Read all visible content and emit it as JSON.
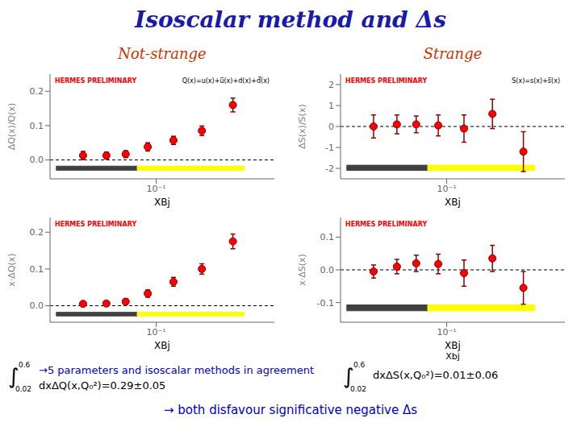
{
  "title": "Isoscalar method and Δs",
  "title_color": "#1a1aaa",
  "column_labels": {
    "texts": [
      "Not-strange",
      "Strange"
    ],
    "color": "#cc3300"
  },
  "integrals": [
    {
      "symbol": "∫",
      "lower": "0.02",
      "upper": "0.6",
      "color": "black"
    },
    {
      "symbol": "∫",
      "lower": "0.02",
      "upper": "0.6",
      "color": "black"
    }
  ],
  "notes": [
    {
      "text": "→5 parameters and isoscalar methods in agreement",
      "color": "#0000cc"
    },
    {
      "text": "dxΔS(x,Q₀²)=0.01±0.06",
      "color": "black"
    },
    {
      "text": "dxΔQ(x,Q₀²)=0.29±0.05",
      "color": "black"
    },
    {
      "text": "→ both disfavour significative negative Δs",
      "color": "#0000cc"
    }
  ],
  "chart_data": [
    {
      "type": "scatter",
      "ylabel": "ΔQ(x)/Q(x)",
      "xlabels": [
        "XBj"
      ],
      "log": "x",
      "xlim": [
        0.02,
        0.6
      ],
      "xticks": [
        {
          "value": 0.1,
          "label": "10⁻¹"
        }
      ],
      "ylim": [
        -0.055,
        0.25
      ],
      "yticks": [
        {
          "value": 0,
          "label": "0.0"
        },
        0.1,
        0.2
      ],
      "x": [
        0.033,
        0.047,
        0.063,
        0.088,
        0.13,
        0.2,
        0.32
      ],
      "values": [
        0.013,
        0.013,
        0.017,
        0.038,
        0.057,
        0.085,
        0.16
      ],
      "yerr": [
        0.012,
        0.01,
        0.01,
        0.012,
        0.012,
        0.014,
        0.02
      ],
      "color": "red",
      "error_color": "darkred",
      "marker": "circle",
      "y_reference": 0,
      "annotations": [
        {
          "text": "HERMES PRELIMINARY",
          "color": "red"
        },
        {
          "text": "Q(x)=u(x)+u̅(x)+d(x)+d̅(x)",
          "color": "black"
        }
      ],
      "bands": [
        {
          "x": [
            0.022,
            0.075
          ],
          "y": [
            -0.03,
            -0.018
          ],
          "color": "#404040"
        },
        {
          "x": [
            0.075,
            0.38
          ],
          "y": [
            -0.03,
            -0.018
          ],
          "color": "yellow"
        }
      ]
    },
    {
      "type": "scatter",
      "ylabel": "ΔS(x)/S(x)",
      "xlabels": [
        "XBj"
      ],
      "log": "x",
      "xlim": [
        0.02,
        0.6
      ],
      "xticks": [
        {
          "value": 0.1,
          "label": "10⁻¹"
        }
      ],
      "ylim": [
        -2.5,
        2.5
      ],
      "yticks": [
        -2,
        -1,
        0,
        1,
        2
      ],
      "x": [
        0.033,
        0.047,
        0.063,
        0.088,
        0.13,
        0.2,
        0.32
      ],
      "values": [
        0.0,
        0.1,
        0.1,
        0.05,
        -0.1,
        0.6,
        -1.2
      ],
      "yerr": [
        0.55,
        0.45,
        0.4,
        0.5,
        0.65,
        0.7,
        0.95
      ],
      "color": "red",
      "error_color": "darkred",
      "marker": "circle",
      "y_reference": 0,
      "annotations": [
        {
          "text": "HERMES PRELIMINARY",
          "color": "red"
        },
        {
          "text": "S(x)=s(x)+s̅(x)",
          "color": "black"
        }
      ],
      "bands": [
        {
          "x": [
            0.022,
            0.075
          ],
          "y": [
            -2.1,
            -1.85
          ],
          "color": "#404040"
        },
        {
          "x": [
            0.075,
            0.38
          ],
          "y": [
            -2.1,
            -1.85
          ],
          "color": "yellow"
        }
      ]
    },
    {
      "type": "scatter",
      "ylabel": "x·ΔQ(x)",
      "xlabels": [
        "XBj"
      ],
      "log": "x",
      "xlim": [
        0.02,
        0.6
      ],
      "xticks": [
        {
          "value": 0.1,
          "label": "10⁻¹"
        }
      ],
      "ylim": [
        -0.045,
        0.24
      ],
      "yticks": [
        {
          "value": 0,
          "label": "0.0"
        },
        0.1,
        0.2
      ],
      "x": [
        0.033,
        0.047,
        0.063,
        0.088,
        0.13,
        0.2,
        0.32
      ],
      "values": [
        0.005,
        0.006,
        0.011,
        0.033,
        0.065,
        0.1,
        0.175
      ],
      "yerr": [
        0.005,
        0.006,
        0.007,
        0.01,
        0.012,
        0.014,
        0.02
      ],
      "color": "red",
      "error_color": "darkred",
      "marker": "circle",
      "y_reference": 0,
      "annotations": [
        {
          "text": "HERMES PRELIMINARY",
          "color": "red"
        }
      ],
      "bands": [
        {
          "x": [
            0.022,
            0.075
          ],
          "y": [
            -0.028,
            -0.018
          ],
          "color": "#404040"
        },
        {
          "x": [
            0.075,
            0.38
          ],
          "y": [
            -0.028,
            -0.018
          ],
          "color": "yellow"
        }
      ]
    },
    {
      "type": "scatter",
      "ylabel": "x·ΔS(x)",
      "xlabels": [
        "XBj",
        "Xbj"
      ],
      "log": "x",
      "xlim": [
        0.02,
        0.6
      ],
      "xticks": [
        {
          "value": 0.1,
          "label": "10⁻¹"
        }
      ],
      "ylim": [
        -0.16,
        0.16
      ],
      "yticks": [
        -0.1,
        {
          "value": 0,
          "label": "0.0"
        },
        0.1
      ],
      "x": [
        0.033,
        0.047,
        0.063,
        0.088,
        0.13,
        0.2,
        0.32
      ],
      "values": [
        -0.005,
        0.01,
        0.02,
        0.018,
        -0.01,
        0.035,
        -0.055
      ],
      "yerr": [
        0.02,
        0.022,
        0.025,
        0.03,
        0.04,
        0.04,
        0.05
      ],
      "color": "red",
      "error_color": "darkred",
      "marker": "circle",
      "y_reference": 0,
      "annotations": [
        {
          "text": "HERMES PRELIMINARY",
          "color": "red"
        }
      ],
      "bands": [
        {
          "x": [
            0.022,
            0.075
          ],
          "y": [
            -0.125,
            -0.107
          ],
          "color": "#404040"
        },
        {
          "x": [
            0.075,
            0.38
          ],
          "y": [
            -0.125,
            -0.107
          ],
          "color": "yellow"
        }
      ]
    }
  ]
}
